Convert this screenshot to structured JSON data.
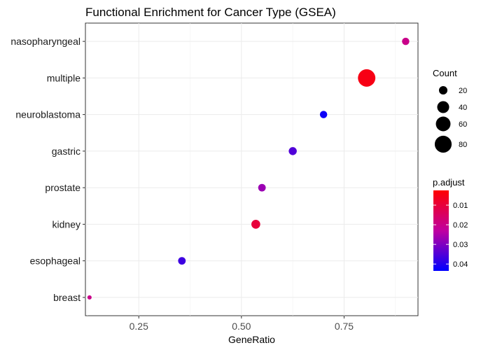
{
  "chart_data": {
    "type": "scatter",
    "title": "Functional Enrichment for Cancer Type (GSEA)",
    "xlabel": "GeneRatio",
    "ylabel": "",
    "xlim": [
      0.12,
      0.93
    ],
    "x_ticks": [
      0.25,
      0.5,
      0.75
    ],
    "x_tick_labels": [
      "0.25",
      "0.50",
      "0.75"
    ],
    "grid": true,
    "categories": [
      "breast",
      "esophageal",
      "kidney",
      "prostate",
      "gastric",
      "neuroblastoma",
      "multiple",
      "nasopharyngeal"
    ],
    "points": [
      {
        "category": "nasopharyngeal",
        "gene_ratio": 0.9,
        "count": 15,
        "p_adjust": 0.02
      },
      {
        "category": "multiple",
        "gene_ratio": 0.805,
        "count": 85,
        "p_adjust": 0.005
      },
      {
        "category": "neuroblastoma",
        "gene_ratio": 0.7,
        "count": 15,
        "p_adjust": 0.042
      },
      {
        "category": "gastric",
        "gene_ratio": 0.625,
        "count": 18,
        "p_adjust": 0.035
      },
      {
        "category": "prostate",
        "gene_ratio": 0.55,
        "count": 16,
        "p_adjust": 0.027
      },
      {
        "category": "kidney",
        "gene_ratio": 0.535,
        "count": 22,
        "p_adjust": 0.01
      },
      {
        "category": "esophageal",
        "gene_ratio": 0.355,
        "count": 16,
        "p_adjust": 0.037
      },
      {
        "category": "breast",
        "gene_ratio": 0.13,
        "count": 5,
        "p_adjust": 0.02
      }
    ],
    "size_legend": {
      "title": "Count",
      "values": [
        20,
        40,
        60,
        80
      ],
      "labels": [
        "20",
        "40",
        "60",
        "80"
      ],
      "placement": "right"
    },
    "color_legend": {
      "title": "p.adjust",
      "range": [
        0.0025,
        0.0435
      ],
      "ticks": [
        0.01,
        0.02,
        0.03,
        0.04
      ],
      "tick_labels": [
        "0.01",
        "0.02",
        "0.03",
        "0.04"
      ],
      "low_color": "#ff0000",
      "high_color": "#0000ff",
      "placement": "right"
    }
  }
}
